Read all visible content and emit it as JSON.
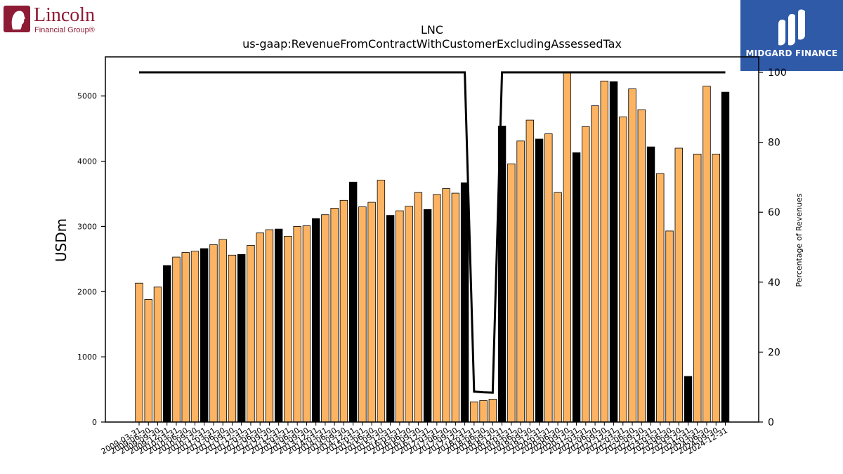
{
  "branding": {
    "left_logo": {
      "name": "Lincoln",
      "tagline": "Financial Group®",
      "color": "#8e1b35"
    },
    "right_logo": {
      "name": "MIDGARD FINANCE",
      "color": "#2f5aa8"
    }
  },
  "chart_data": {
    "type": "bar",
    "title": "LNC",
    "subtitle": "us-gaap:RevenueFromContractWithCustomerExcludingAssessedTax",
    "ylabel": "USDm",
    "y2label": "Percentage of Revenues",
    "ylim": [
      0,
      5600
    ],
    "y2lim": [
      0,
      100
    ],
    "yticks": [
      0,
      1000,
      2000,
      3000,
      4000,
      5000
    ],
    "y2ticks": [
      0,
      20,
      40,
      60,
      80,
      100
    ],
    "grid": false,
    "colors": {
      "quarter": "#fdb462",
      "annual": "#000000",
      "line": "#000000"
    },
    "categories": [
      "2009-03-31",
      "2009-06-30",
      "2009-09-30",
      "2009-12-31",
      "2010-03-31",
      "2010-06-30",
      "2010-09-30",
      "2010-12-31",
      "2011-03-31",
      "2011-06-30",
      "2011-09-30",
      "2011-12-31",
      "2012-03-31",
      "2012-06-30",
      "2012-09-30",
      "2012-12-31",
      "2013-03-31",
      "2013-06-30",
      "2013-09-30",
      "2013-12-31",
      "2014-03-31",
      "2014-06-30",
      "2014-09-30",
      "2014-12-31",
      "2015-03-31",
      "2015-06-30",
      "2015-09-30",
      "2015-12-31",
      "2016-03-31",
      "2016-06-30",
      "2016-09-30",
      "2016-12-31",
      "2017-03-31",
      "2017-06-30",
      "2017-09-30",
      "2017-12-31",
      "2018-03-31",
      "2018-06-30",
      "2018-09-30",
      "2018-12-31",
      "2019-03-31",
      "2019-06-30",
      "2019-09-30",
      "2019-12-31",
      "2020-03-31",
      "2020-06-30",
      "2020-09-30",
      "2020-12-31",
      "2021-03-31",
      "2021-06-30",
      "2021-09-30",
      "2021-12-31",
      "2022-03-31",
      "2022-06-30",
      "2022-09-30",
      "2022-12-31",
      "2023-03-31",
      "2023-06-30",
      "2023-09-30",
      "2023-12-31",
      "2024-03-31",
      "2024-06-30",
      "2024-09-30",
      "2024-12-31"
    ],
    "tick_labels": [
      "2009-03-31",
      "2009-06-30",
      "2009-09-30",
      "2009-12-31",
      "2010-03-31",
      "2010-06-30",
      "2010-09-30",
      "2010-12-31",
      "2011-03-31",
      "2011-06-30",
      "2011-09-30",
      "2011-12-31",
      "2012-03-31",
      "2012-06-30",
      "2012-09-30",
      "2012-12-31",
      "2013-03-31",
      "2013-06-30",
      "2013-09-30",
      "2013-12-31",
      "2014-03-31",
      "2014-06-30",
      "2014-09-30",
      "2014-12-31",
      "2015-03-31",
      "2015-06-30",
      "2015-09-30",
      "2015-12-31",
      "2016-03-31",
      "2016-06-30",
      "2016-09-30",
      "2016-12-31",
      "2017-03-31",
      "2017-06-30",
      "2017-09-30",
      "2017-12-31",
      "2018-03-31",
      "2018-06-30",
      "2018-09-30",
      "2018-12-31",
      "2019-03-31",
      "2019-06-30",
      "2019-09-30",
      "2019-12-31",
      "2020-03-31",
      "2020-06-30",
      "2020-09-30",
      "2020-12-31",
      "2021-03-31",
      "2021-06-30",
      "2021-09-30",
      "2021-12-31",
      "2022-03-31",
      "2022-06-30",
      "2022-09-30",
      "2022-12-31",
      "2023-03-31",
      "2023-06-30",
      "2023-09-30",
      "2023-12-31",
      "2024-03-31",
      "2024-06-30",
      "2024-09-30",
      "2024-12-31"
    ],
    "series": [
      {
        "type": "bar",
        "axis": "left",
        "values": [
          2130,
          1880,
          2070,
          2400,
          2530,
          2600,
          2620,
          2660,
          2720,
          2800,
          2560,
          2570,
          2710,
          2900,
          2950,
          2960,
          2850,
          3000,
          3010,
          3120,
          3180,
          3280,
          3400,
          3680,
          3300,
          3370,
          3710,
          3170,
          3240,
          3310,
          3520,
          3260,
          3490,
          3580,
          3510,
          3670,
          310,
          330,
          350,
          4540,
          3960,
          4310,
          4630,
          4340,
          4420,
          3520,
          5360,
          4130,
          4530,
          4850,
          5230,
          5220,
          4680,
          5110,
          4790,
          4220,
          3810,
          2930,
          4200,
          700,
          4110,
          5150,
          4110,
          5060
        ],
        "annual": [
          false,
          false,
          false,
          true,
          false,
          false,
          false,
          true,
          false,
          false,
          false,
          true,
          false,
          false,
          false,
          true,
          false,
          false,
          false,
          true,
          false,
          false,
          false,
          true,
          false,
          false,
          false,
          true,
          false,
          false,
          false,
          true,
          false,
          false,
          false,
          true,
          false,
          false,
          false,
          true,
          false,
          false,
          false,
          true,
          false,
          false,
          false,
          true,
          false,
          false,
          false,
          true,
          false,
          false,
          false,
          true,
          false,
          false,
          false,
          true,
          false,
          false,
          false,
          true
        ]
      },
      {
        "type": "line",
        "axis": "right",
        "values": [
          100,
          100,
          100,
          100,
          100,
          100,
          100,
          100,
          100,
          100,
          100,
          100,
          100,
          100,
          100,
          100,
          100,
          100,
          100,
          100,
          100,
          100,
          100,
          100,
          100,
          100,
          100,
          100,
          100,
          100,
          100,
          100,
          100,
          100,
          100,
          100,
          8.7,
          8.5,
          8.4,
          100,
          100,
          100,
          100,
          100,
          100,
          100,
          100,
          100,
          100,
          100,
          100,
          100,
          100,
          100,
          100,
          100,
          100,
          100,
          100,
          100,
          100,
          100,
          100,
          100
        ]
      }
    ]
  }
}
